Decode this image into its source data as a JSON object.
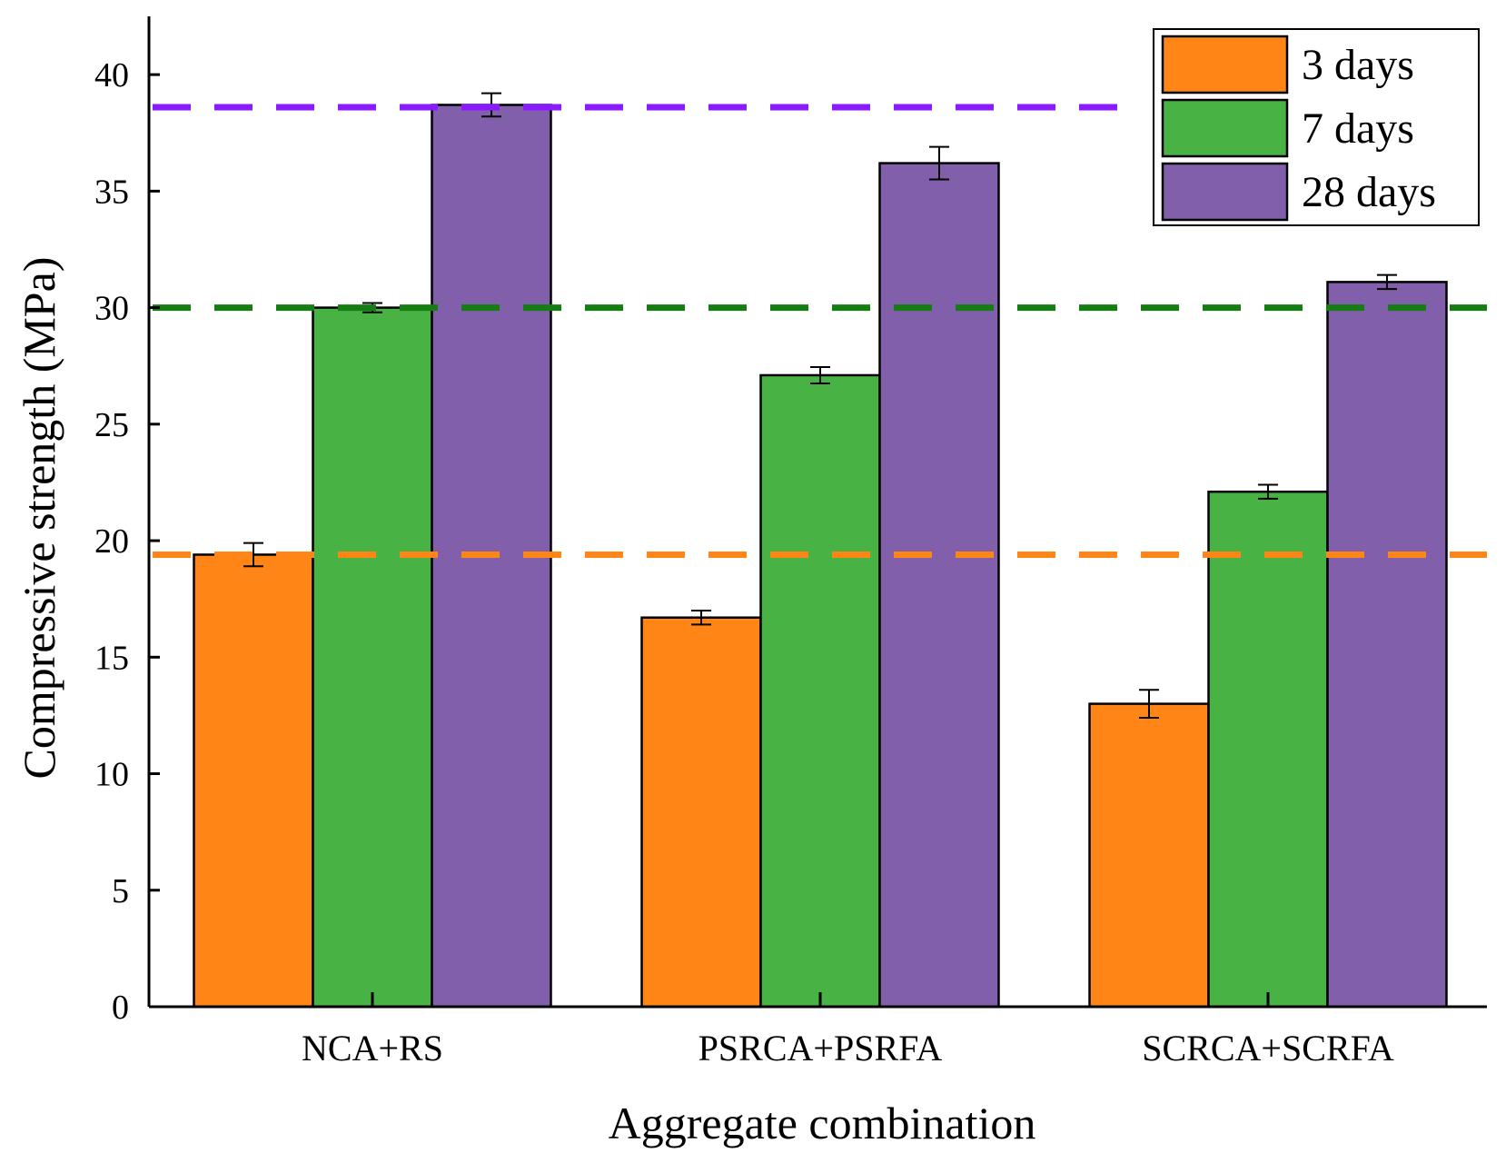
{
  "chart_data": {
    "type": "bar",
    "title": "",
    "xlabel": "Aggregate combination",
    "ylabel": "Compressive strength (MPa)",
    "ylim": [
      0,
      42.5
    ],
    "yticks": [
      0,
      5,
      10,
      15,
      20,
      25,
      30,
      35,
      40
    ],
    "grid": false,
    "legend_position": "top-right",
    "categories": [
      "NCA+RS",
      "PSRCA+PSRFA",
      "SCRCA+SCRFA"
    ],
    "series": [
      {
        "name": "3 days",
        "color": "#ff8516",
        "values": [
          19.4,
          16.7,
          13.0
        ],
        "errors": [
          0.5,
          0.3,
          0.6
        ]
      },
      {
        "name": "7 days",
        "color": "#48b245",
        "values": [
          30.0,
          27.1,
          22.1
        ],
        "errors": [
          0.2,
          0.35,
          0.3
        ]
      },
      {
        "name": "28 days",
        "color": "#825fab",
        "values": [
          38.7,
          36.2,
          31.1
        ],
        "errors": [
          0.5,
          0.7,
          0.3
        ]
      }
    ],
    "reference_lines": [
      {
        "name": "3 days reference",
        "value": 19.4,
        "color": "#ff8516",
        "style": "dashed"
      },
      {
        "name": "7 days reference",
        "value": 30.0,
        "color": "#157d12",
        "style": "dashed"
      },
      {
        "name": "28 days reference",
        "value": 38.6,
        "color": "#8a1aff",
        "style": "dashed"
      }
    ]
  }
}
